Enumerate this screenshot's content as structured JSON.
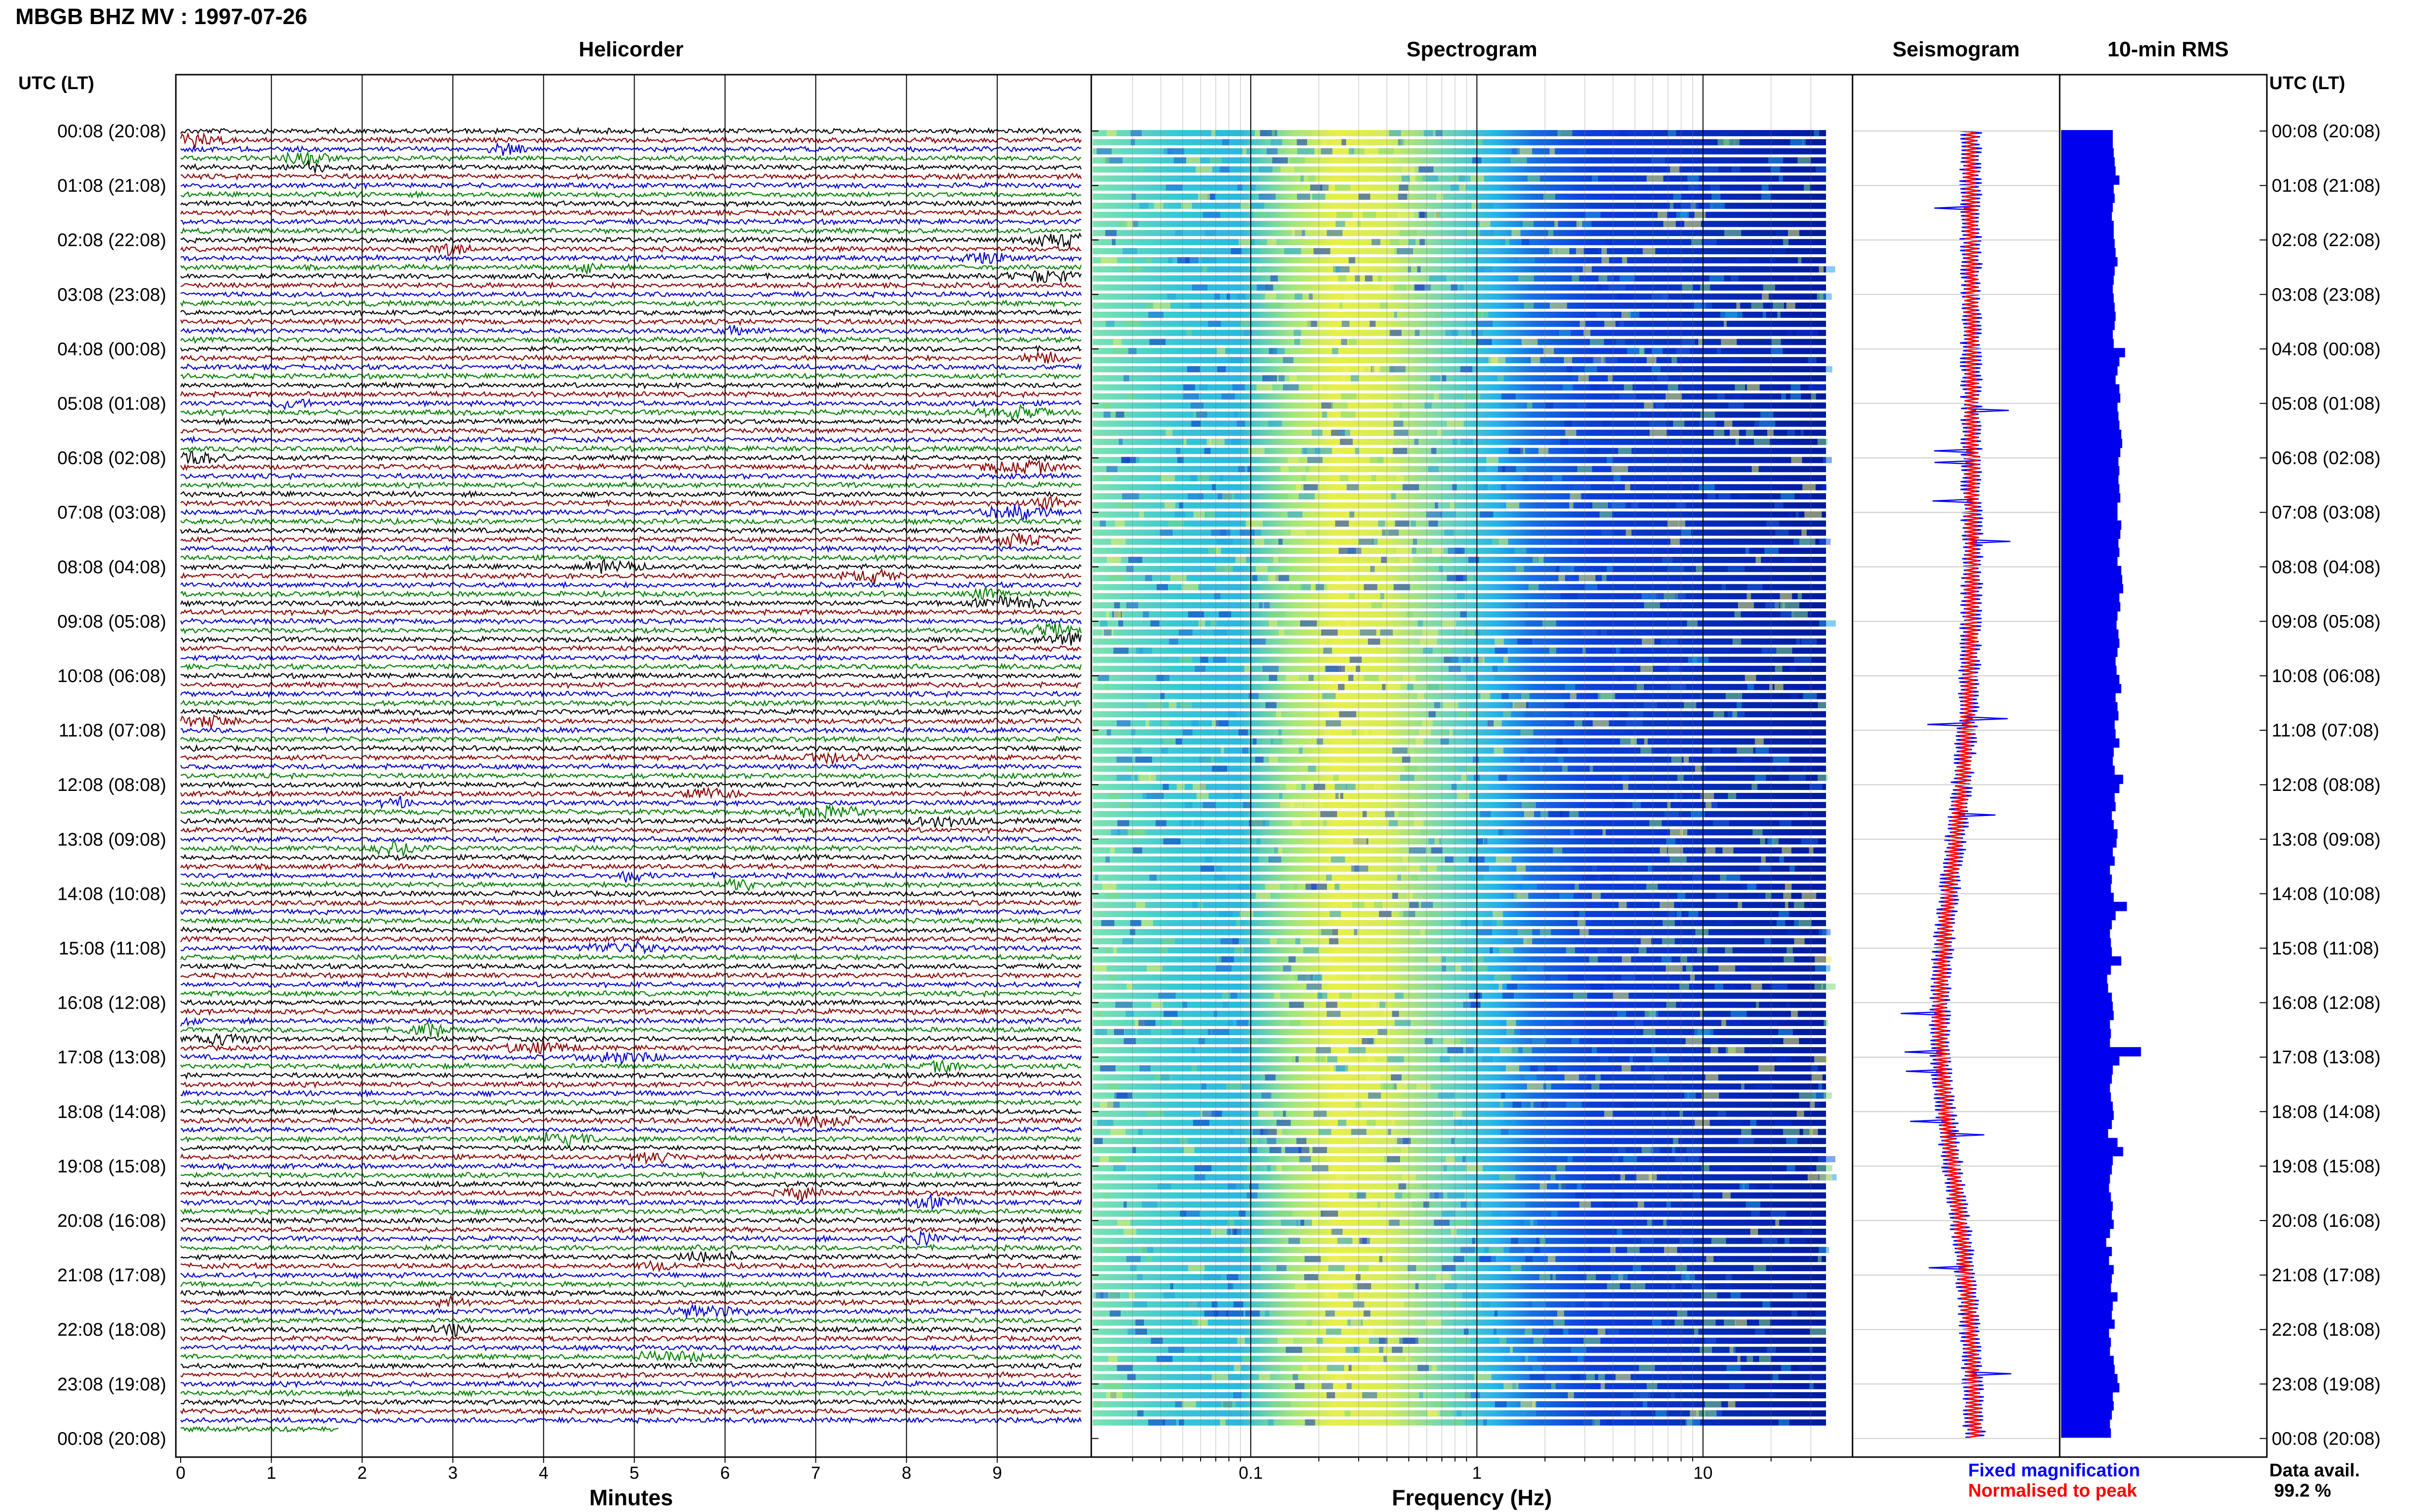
{
  "title": "MBGB BHZ MV : 1997-07-26",
  "utc_label": "UTC (LT)",
  "panels": {
    "helicorder": "Helicorder",
    "spectrogram": "Spectrogram",
    "seismogram": "Seismogram",
    "rms": "10-min RMS"
  },
  "axes": {
    "helicorder_xlabel": "Minutes",
    "spectrogram_xlabel": "Frequency (Hz)",
    "helicorder_ticks": [
      "0",
      "1",
      "2",
      "3",
      "4",
      "5",
      "6",
      "7",
      "8",
      "9"
    ],
    "spectrogram_ticks": [
      "0.1",
      "1",
      "10"
    ]
  },
  "legend": {
    "fixed": "Fixed magnification",
    "normalised": "Normalised to peak",
    "data_avail_label": "Data avail.",
    "data_avail_value": "99.2 %"
  },
  "colors": {
    "trace_cycle": [
      "#000000",
      "#8b0000",
      "#0000cd",
      "#008000"
    ],
    "rms_bar": "#0000ee",
    "fixed": "#0000ff",
    "normalised": "#ff0000",
    "grid": "#000000"
  },
  "chart_data": [
    {
      "type": "line",
      "title": "Helicorder",
      "xlabel": "Minutes",
      "ylabel": "UTC (LT)",
      "x_range": [
        0,
        10
      ],
      "row_labels": [
        "00:08 (20:08)",
        "01:08 (21:08)",
        "02:08 (22:08)",
        "03:08 (23:08)",
        "04:08 (00:08)",
        "05:08 (01:08)",
        "06:08 (02:08)",
        "07:08 (03:08)",
        "08:08 (04:08)",
        "09:08 (05:08)",
        "10:08 (06:08)",
        "11:08 (07:08)",
        "12:08 (08:08)",
        "13:08 (09:08)",
        "14:08 (10:08)",
        "15:08 (11:08)",
        "16:08 (12:08)",
        "17:08 (13:08)",
        "18:08 (14:08)",
        "19:08 (15:08)",
        "20:08 (16:08)",
        "21:08 (17:08)",
        "22:08 (18:08)",
        "23:08 (19:08)",
        "00:08 (20:08)"
      ],
      "rows_per_hour": 6
    },
    {
      "type": "heatmap",
      "title": "Spectrogram",
      "xlabel": "Frequency (Hz)",
      "x_scale": "log",
      "x_range": [
        0.02,
        35
      ],
      "ticks": [
        0.1,
        1,
        10
      ]
    },
    {
      "type": "line",
      "title": "Seismogram",
      "series": [
        {
          "name": "Fixed magnification",
          "color": "#0000ff"
        },
        {
          "name": "Normalised to peak",
          "color": "#ff0000"
        }
      ]
    },
    {
      "type": "bar",
      "title": "10-min RMS",
      "orientation": "horizontal",
      "values": [
        55,
        55,
        56,
        57,
        58,
        62,
        56,
        57,
        55,
        54,
        56,
        56,
        57,
        58,
        60,
        57,
        56,
        55,
        56,
        57,
        58,
        57,
        55,
        56,
        68,
        62,
        60,
        58,
        62,
        63,
        60,
        61,
        62,
        64,
        65,
        63,
        61,
        62,
        61,
        62,
        63,
        60,
        60,
        64,
        63,
        61,
        62,
        60,
        64,
        65,
        66,
        62,
        63,
        60,
        59,
        61,
        62,
        60,
        58,
        59,
        62,
        64,
        58,
        60,
        61,
        57,
        58,
        62,
        56,
        55,
        57,
        66,
        62,
        57,
        58,
        54,
        56,
        60,
        59,
        55,
        57,
        52,
        54,
        53,
        56,
        70,
        58,
        54,
        52,
        53,
        54,
        64,
        53,
        49,
        50,
        54,
        55,
        56,
        52,
        53,
        52,
        85,
        62,
        55,
        54,
        52,
        53,
        55,
        56,
        54,
        50,
        60,
        66,
        55,
        54,
        52,
        51,
        53,
        55,
        54,
        56,
        52,
        48,
        54,
        51,
        56,
        54,
        53,
        60,
        55,
        54,
        57,
        51,
        53,
        52,
        56,
        57,
        60,
        62,
        55,
        56,
        54,
        52,
        53,
        55,
        56,
        57,
        55,
        54,
        53
      ]
    }
  ]
}
